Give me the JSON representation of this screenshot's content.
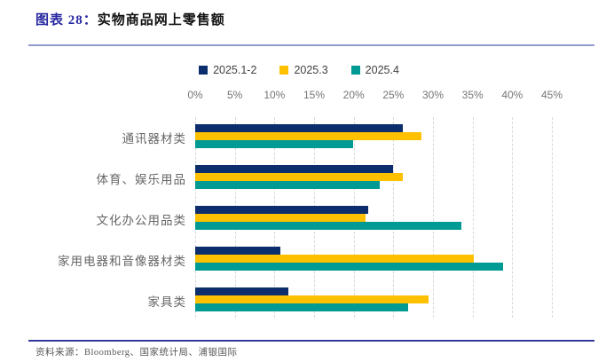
{
  "figure": {
    "label": "图表 28：",
    "title": "实物商品网上零售额",
    "source": "资料来源：Bloomberg、国家统计局、浦银国际"
  },
  "chart_data": {
    "type": "bar",
    "orientation": "horizontal",
    "title": "实物商品网上零售额",
    "categories": [
      "通讯器材类",
      "体育、娱乐用品",
      "文化办公用品类",
      "家用电器和音像器材类",
      "家具类"
    ],
    "series": [
      {
        "name": "2025.1-2",
        "color": "#0d2e6d",
        "values": [
          26.2,
          25.0,
          21.8,
          10.8,
          11.7
        ]
      },
      {
        "name": "2025.3",
        "color": "#ffc000",
        "values": [
          28.6,
          26.2,
          21.5,
          35.1,
          29.4
        ]
      },
      {
        "name": "2025.4",
        "color": "#009a94",
        "values": [
          19.9,
          23.3,
          33.6,
          38.8,
          26.9
        ]
      }
    ],
    "x_ticks": [
      "0%",
      "5%",
      "10%",
      "15%",
      "20%",
      "25%",
      "30%",
      "35%",
      "40%",
      "45%"
    ],
    "xlim": [
      0,
      45
    ],
    "axis_position": "top",
    "grid": "dashed-vertical",
    "legend_position": "top-center"
  },
  "colors": {
    "title_label": "#2727a0",
    "rule_top": "#9398cf",
    "rule_bottom": "#34379b",
    "axis_text": "#757575",
    "category_text": "#666666",
    "gridline": "#d8d8d8"
  }
}
